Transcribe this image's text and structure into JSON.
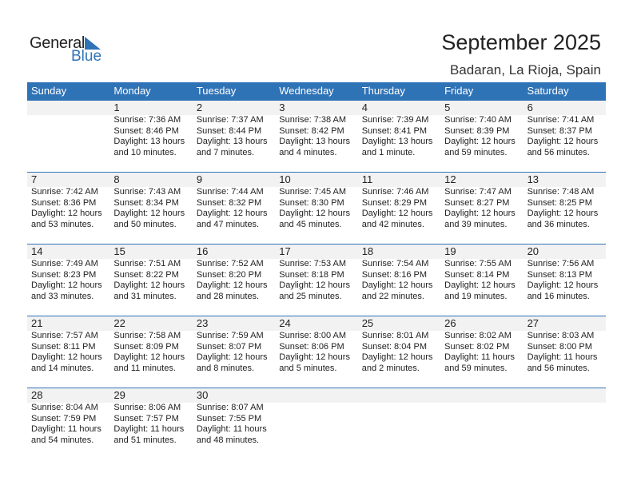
{
  "logo": {
    "general": "General",
    "blue": "Blue"
  },
  "header": {
    "title": "September 2025",
    "location": "Badaran, La Rioja, Spain"
  },
  "colors": {
    "accent": "#2f73b7",
    "band": "#f2f2f2"
  },
  "weekdays": [
    "Sunday",
    "Monday",
    "Tuesday",
    "Wednesday",
    "Thursday",
    "Friday",
    "Saturday"
  ],
  "weeks": [
    {
      "days": [
        null,
        {
          "day": "1",
          "sunrise": "Sunrise: 7:36 AM",
          "sunset": "Sunset: 8:46 PM",
          "daylight": "Daylight: 13 hours",
          "minutes": "and 10 minutes."
        },
        {
          "day": "2",
          "sunrise": "Sunrise: 7:37 AM",
          "sunset": "Sunset: 8:44 PM",
          "daylight": "Daylight: 13 hours",
          "minutes": "and 7 minutes."
        },
        {
          "day": "3",
          "sunrise": "Sunrise: 7:38 AM",
          "sunset": "Sunset: 8:42 PM",
          "daylight": "Daylight: 13 hours",
          "minutes": "and 4 minutes."
        },
        {
          "day": "4",
          "sunrise": "Sunrise: 7:39 AM",
          "sunset": "Sunset: 8:41 PM",
          "daylight": "Daylight: 13 hours",
          "minutes": "and 1 minute."
        },
        {
          "day": "5",
          "sunrise": "Sunrise: 7:40 AM",
          "sunset": "Sunset: 8:39 PM",
          "daylight": "Daylight: 12 hours",
          "minutes": "and 59 minutes."
        },
        {
          "day": "6",
          "sunrise": "Sunrise: 7:41 AM",
          "sunset": "Sunset: 8:37 PM",
          "daylight": "Daylight: 12 hours",
          "minutes": "and 56 minutes."
        }
      ]
    },
    {
      "days": [
        {
          "day": "7",
          "sunrise": "Sunrise: 7:42 AM",
          "sunset": "Sunset: 8:36 PM",
          "daylight": "Daylight: 12 hours",
          "minutes": "and 53 minutes."
        },
        {
          "day": "8",
          "sunrise": "Sunrise: 7:43 AM",
          "sunset": "Sunset: 8:34 PM",
          "daylight": "Daylight: 12 hours",
          "minutes": "and 50 minutes."
        },
        {
          "day": "9",
          "sunrise": "Sunrise: 7:44 AM",
          "sunset": "Sunset: 8:32 PM",
          "daylight": "Daylight: 12 hours",
          "minutes": "and 47 minutes."
        },
        {
          "day": "10",
          "sunrise": "Sunrise: 7:45 AM",
          "sunset": "Sunset: 8:30 PM",
          "daylight": "Daylight: 12 hours",
          "minutes": "and 45 minutes."
        },
        {
          "day": "11",
          "sunrise": "Sunrise: 7:46 AM",
          "sunset": "Sunset: 8:29 PM",
          "daylight": "Daylight: 12 hours",
          "minutes": "and 42 minutes."
        },
        {
          "day": "12",
          "sunrise": "Sunrise: 7:47 AM",
          "sunset": "Sunset: 8:27 PM",
          "daylight": "Daylight: 12 hours",
          "minutes": "and 39 minutes."
        },
        {
          "day": "13",
          "sunrise": "Sunrise: 7:48 AM",
          "sunset": "Sunset: 8:25 PM",
          "daylight": "Daylight: 12 hours",
          "minutes": "and 36 minutes."
        }
      ]
    },
    {
      "days": [
        {
          "day": "14",
          "sunrise": "Sunrise: 7:49 AM",
          "sunset": "Sunset: 8:23 PM",
          "daylight": "Daylight: 12 hours",
          "minutes": "and 33 minutes."
        },
        {
          "day": "15",
          "sunrise": "Sunrise: 7:51 AM",
          "sunset": "Sunset: 8:22 PM",
          "daylight": "Daylight: 12 hours",
          "minutes": "and 31 minutes."
        },
        {
          "day": "16",
          "sunrise": "Sunrise: 7:52 AM",
          "sunset": "Sunset: 8:20 PM",
          "daylight": "Daylight: 12 hours",
          "minutes": "and 28 minutes."
        },
        {
          "day": "17",
          "sunrise": "Sunrise: 7:53 AM",
          "sunset": "Sunset: 8:18 PM",
          "daylight": "Daylight: 12 hours",
          "minutes": "and 25 minutes."
        },
        {
          "day": "18",
          "sunrise": "Sunrise: 7:54 AM",
          "sunset": "Sunset: 8:16 PM",
          "daylight": "Daylight: 12 hours",
          "minutes": "and 22 minutes."
        },
        {
          "day": "19",
          "sunrise": "Sunrise: 7:55 AM",
          "sunset": "Sunset: 8:14 PM",
          "daylight": "Daylight: 12 hours",
          "minutes": "and 19 minutes."
        },
        {
          "day": "20",
          "sunrise": "Sunrise: 7:56 AM",
          "sunset": "Sunset: 8:13 PM",
          "daylight": "Daylight: 12 hours",
          "minutes": "and 16 minutes."
        }
      ]
    },
    {
      "days": [
        {
          "day": "21",
          "sunrise": "Sunrise: 7:57 AM",
          "sunset": "Sunset: 8:11 PM",
          "daylight": "Daylight: 12 hours",
          "minutes": "and 14 minutes."
        },
        {
          "day": "22",
          "sunrise": "Sunrise: 7:58 AM",
          "sunset": "Sunset: 8:09 PM",
          "daylight": "Daylight: 12 hours",
          "minutes": "and 11 minutes."
        },
        {
          "day": "23",
          "sunrise": "Sunrise: 7:59 AM",
          "sunset": "Sunset: 8:07 PM",
          "daylight": "Daylight: 12 hours",
          "minutes": "and 8 minutes."
        },
        {
          "day": "24",
          "sunrise": "Sunrise: 8:00 AM",
          "sunset": "Sunset: 8:06 PM",
          "daylight": "Daylight: 12 hours",
          "minutes": "and 5 minutes."
        },
        {
          "day": "25",
          "sunrise": "Sunrise: 8:01 AM",
          "sunset": "Sunset: 8:04 PM",
          "daylight": "Daylight: 12 hours",
          "minutes": "and 2 minutes."
        },
        {
          "day": "26",
          "sunrise": "Sunrise: 8:02 AM",
          "sunset": "Sunset: 8:02 PM",
          "daylight": "Daylight: 11 hours",
          "minutes": "and 59 minutes."
        },
        {
          "day": "27",
          "sunrise": "Sunrise: 8:03 AM",
          "sunset": "Sunset: 8:00 PM",
          "daylight": "Daylight: 11 hours",
          "minutes": "and 56 minutes."
        }
      ]
    },
    {
      "days": [
        {
          "day": "28",
          "sunrise": "Sunrise: 8:04 AM",
          "sunset": "Sunset: 7:59 PM",
          "daylight": "Daylight: 11 hours",
          "minutes": "and 54 minutes."
        },
        {
          "day": "29",
          "sunrise": "Sunrise: 8:06 AM",
          "sunset": "Sunset: 7:57 PM",
          "daylight": "Daylight: 11 hours",
          "minutes": "and 51 minutes."
        },
        {
          "day": "30",
          "sunrise": "Sunrise: 8:07 AM",
          "sunset": "Sunset: 7:55 PM",
          "daylight": "Daylight: 11 hours",
          "minutes": "and 48 minutes."
        },
        null,
        null,
        null,
        null
      ]
    }
  ]
}
